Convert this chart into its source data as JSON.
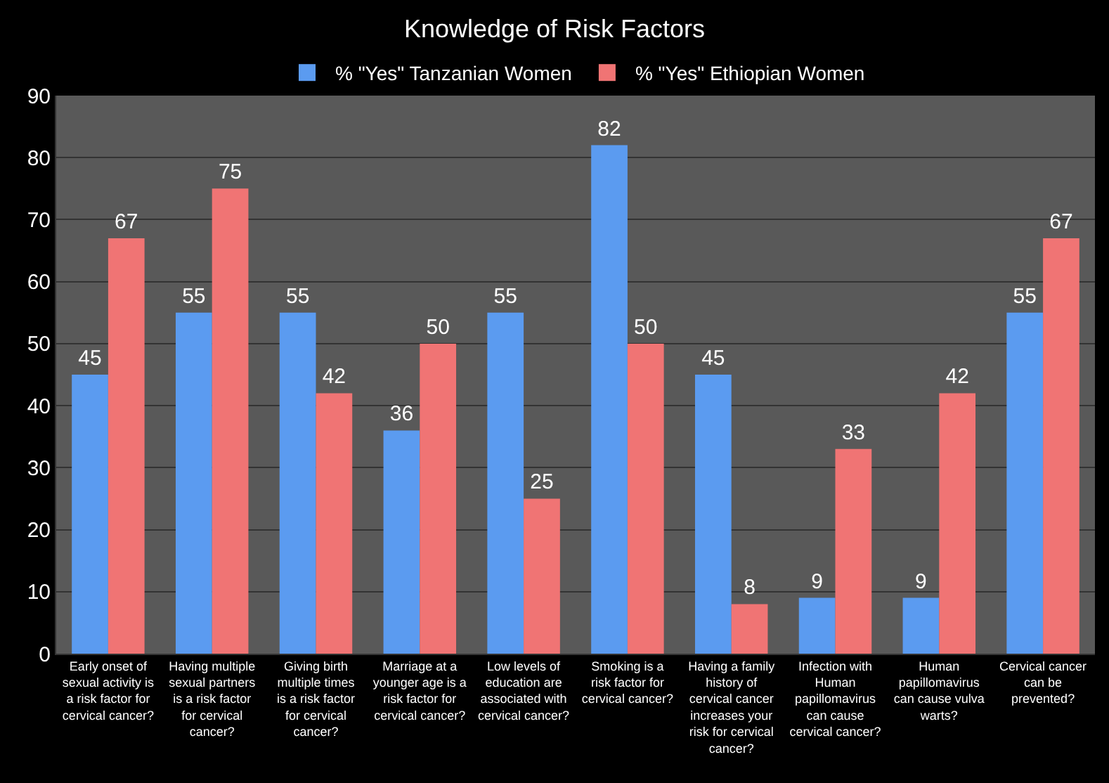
{
  "chart_data": {
    "type": "bar",
    "title": "Knowledge of Risk Factors",
    "categories": [
      "Early onset of\nsexual activity is\na risk factor for\ncervical cancer?",
      "Having multiple\nsexual partners\nis a risk factor\nfor cervical\ncancer?",
      "Giving birth\nmultiple times\nis a risk factor\nfor cervical\ncancer?",
      "Marriage at a\nyounger age is a\nrisk factor for\ncervical cancer?",
      "Low levels of\neducation are\nassociated with\ncervical cancer?",
      "Smoking is a\nrisk factor for\ncervical cancer?",
      "Having a family\nhistory of\ncervical cancer\nincreases your\nrisk for cervical\ncancer?",
      "Infection with\nHuman\npapillomavirus\ncan cause\ncervical cancer?",
      "Human\npapillomavirus\ncan cause vulva\nwarts?",
      "Cervical cancer\ncan be\nprevented?"
    ],
    "series": [
      {
        "name": "% \"Yes\" Tanzanian Women",
        "color": "#5b9bf0",
        "values": [
          45,
          55,
          55,
          36,
          55,
          82,
          45,
          9,
          9,
          55
        ]
      },
      {
        "name": "% \"Yes\" Ethiopian Women",
        "color": "#f07474",
        "values": [
          67,
          75,
          42,
          50,
          25,
          50,
          8,
          33,
          42,
          67
        ]
      }
    ],
    "ylim": [
      0,
      90
    ],
    "yticks": [
      0,
      10,
      20,
      30,
      40,
      50,
      60,
      70,
      80,
      90
    ],
    "grid": "y",
    "legend": "top",
    "data_labels": true
  }
}
